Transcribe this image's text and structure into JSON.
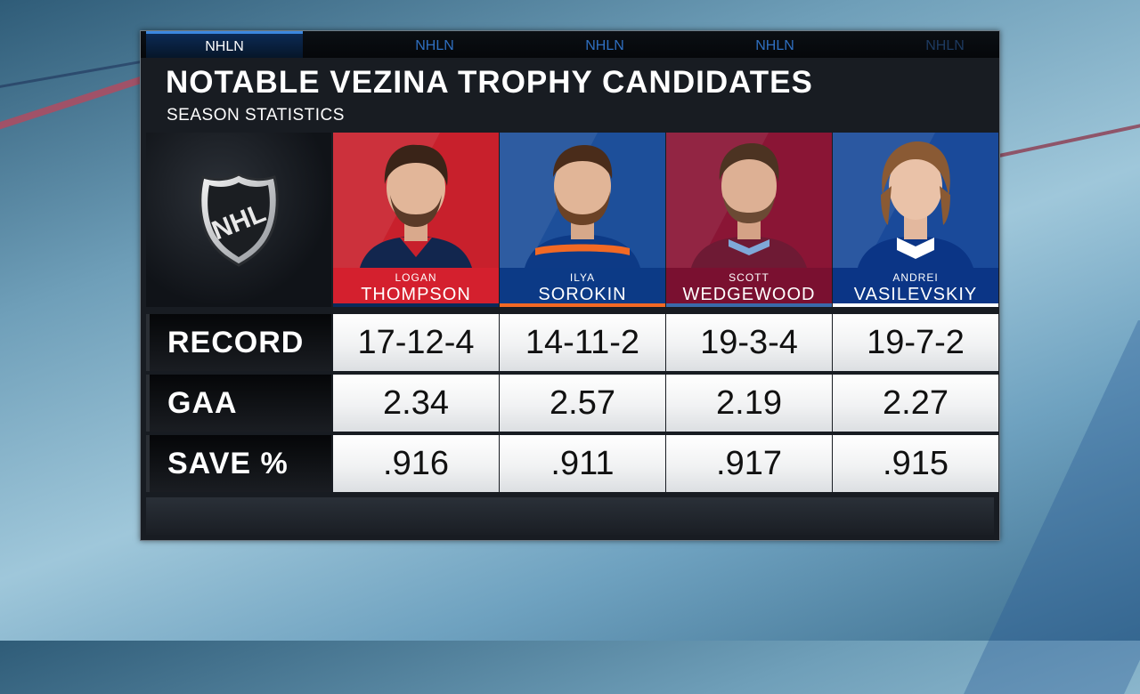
{
  "tabs": [
    {
      "label": "NHLN",
      "state": "active"
    },
    {
      "label": "NHLN",
      "state": "normal"
    },
    {
      "label": "NHLN",
      "state": "normal"
    },
    {
      "label": "NHLN",
      "state": "normal"
    },
    {
      "label": "NHLN",
      "state": "dim"
    }
  ],
  "header": {
    "title": "Notable Vezina Trophy Candidates",
    "subtitle": "Season Statistics"
  },
  "logo": {
    "text": "NHL",
    "icon": "nhl-shield-icon"
  },
  "players": [
    {
      "first": "Logan",
      "last": "Thompson",
      "bg": "#c8202c",
      "namebox": "#d4202e",
      "stripe": "#0a2a5a"
    },
    {
      "first": "Ilya",
      "last": "Sorokin",
      "bg": "#1d4f9a",
      "namebox": "#0c3a86",
      "stripe": "#f26924"
    },
    {
      "first": "Scott",
      "last": "Wedgewood",
      "bg": "#8a1535",
      "namebox": "#7a1030",
      "stripe": "#3a6aaa"
    },
    {
      "first": "Andrei",
      "last": "Vasilevskiy",
      "bg": "#1a4a9a",
      "namebox": "#0b3586",
      "stripe": "#ffffff"
    }
  ],
  "stats": [
    {
      "label": "Record",
      "values": [
        "17-12-4",
        "14-11-2",
        "19-3-4",
        "19-7-2"
      ]
    },
    {
      "label": "GAA",
      "values": [
        "2.34",
        "2.57",
        "2.19",
        "2.27"
      ]
    },
    {
      "label": "Save %",
      "values": [
        ".916",
        ".911",
        ".917",
        ".915"
      ]
    }
  ]
}
